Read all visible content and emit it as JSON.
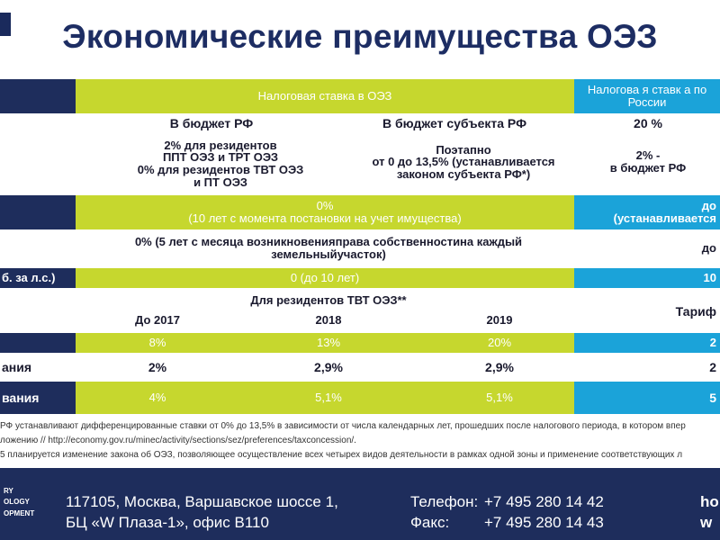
{
  "title": "Экономические преимущества ОЭЗ",
  "header": {
    "oez_tax": "Налоговая   ставка   в ОЭЗ",
    "russia_tax": "Налогова я ставк а по России"
  },
  "profit_tax": {
    "federal_label": "В бюджет РФ",
    "regional_label": "В бюджет субъекта РФ",
    "russia_rate": "20 %",
    "federal_line1": "2%   для резидентов",
    "federal_line2": "ППТ ОЭЗ и ТРТ ОЭЗ",
    "federal_line3": "0%   для резидентов ТВТ ОЭЗ",
    "federal_line4": "и ПТ ОЭЗ",
    "regional_line1": "Поэтапно",
    "regional_line2": "от  0 до 13,5%   (устанавливается",
    "regional_line3": "законом субъекта РФ*)",
    "russia_line1": "2%   -",
    "russia_line2": "в бюджет РФ"
  },
  "property_tax": {
    "line1": "0%",
    "line2": "(10  лет с момента постановки на учет имущества)",
    "russia_line1": "до",
    "russia_line2": "(устанавливается"
  },
  "land_tax": {
    "line1": "0%   (5 лет с месяца возникновенияправа собственностина каждый",
    "line2": "земельныйучасток)",
    "russia": "до"
  },
  "transport_tax": {
    "label": "б. за л.с.)",
    "oez": "0 (до 10 лет)",
    "russia": "10"
  },
  "insurance": {
    "tvt_header": "Для резидентов ТВТ ОЭЗ**",
    "year1": "До 2017",
    "year2": "2018",
    "year3": "2019",
    "tariff": "Тариф",
    "row1": {
      "v1": "8%",
      "v2": "13%",
      "v3": "20%",
      "russia": "2"
    },
    "row2": {
      "label": "ания",
      "v1": "2%",
      "v2": "2,9%",
      "v3": "2,9%",
      "russia": "2"
    },
    "row3": {
      "label": "вания",
      "v1": "4%",
      "v2": "5,1%",
      "v3": "5,1%",
      "russia": "5"
    }
  },
  "footnotes": {
    "line1": "РФ устанавливают дифференцированные ставки от 0% до 13,5% в зависимости от числа календарных лет, прошедших после налогового периода, в котором впер",
    "line2": "ложению // http://economy.gov.ru/minec/activity/sections/sez/preferences/taxconcession/.",
    "line3": "5 планируется изменение закона об ОЭЗ, позволяющее осуществление всех четырех видов деятельности в рамках одной зоны и применение соответствующих л"
  },
  "footer": {
    "brand_line1": "RY",
    "brand_line2": "OLOGY",
    "brand_line3": "OPMENT",
    "address_line1": "117105, Москва, Варшавское шоссе 1,",
    "address_line2": "БЦ «W Плаза-1», офис В110",
    "phone_label": "Телефон:",
    "phone_value": "+7 495 280 14 42",
    "fax_label": "Факс:",
    "fax_value": "+7 495 280 14 43",
    "site_line1": "ho",
    "site_line2": "w"
  },
  "colors": {
    "navy": "#1e2d5c",
    "lime": "#c6d72e",
    "cyan": "#1ba3d9",
    "title": "#1d2d63"
  }
}
